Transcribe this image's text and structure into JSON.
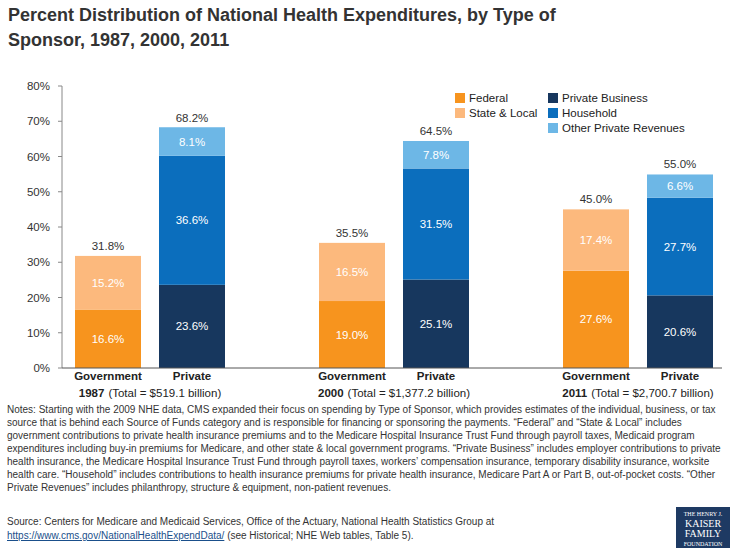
{
  "chart_data": {
    "type": "bar",
    "title": "Percent Distribution of National Health Expenditures, by Type of Sponsor, 1987, 2000, 2011",
    "categories": [
      "Government",
      "Private",
      "Government",
      "Private",
      "Government",
      "Private"
    ],
    "groups": [
      {
        "name": "1987",
        "total_label": "(Total = $519.1 billion)"
      },
      {
        "name": "2000",
        "total_label": "(Total = $1,377.2 billion)"
      },
      {
        "name": "2011",
        "total_label": "(Total = $2,700.7 billion)"
      }
    ],
    "series": [
      {
        "name": "Federal",
        "color": "#f7941e",
        "values": [
          16.6,
          null,
          19.0,
          null,
          27.6,
          null
        ],
        "value_labels": [
          "16.6%",
          null,
          "19.0%",
          null,
          "27.6%",
          null
        ]
      },
      {
        "name": "State & Local",
        "color": "#fcb97d",
        "values": [
          15.2,
          null,
          16.5,
          null,
          17.4,
          null
        ],
        "value_labels": [
          "15.2%",
          null,
          "16.5%",
          null,
          "17.4%",
          null
        ]
      },
      {
        "name": "Private Business",
        "color": "#17375e",
        "values": [
          null,
          23.6,
          null,
          25.1,
          null,
          20.6
        ],
        "value_labels": [
          null,
          "23.6%",
          null,
          "25.1%",
          null,
          "20.6%"
        ]
      },
      {
        "name": "Household",
        "color": "#0b6ebd",
        "values": [
          null,
          36.6,
          null,
          31.5,
          null,
          27.7
        ],
        "value_labels": [
          null,
          "36.6%",
          null,
          "31.5%",
          null,
          "27.7%"
        ]
      },
      {
        "name": "Other Private Revenues",
        "color": "#6db7e6",
        "values": [
          null,
          8.1,
          null,
          7.8,
          null,
          6.6
        ],
        "value_labels": [
          null,
          "8.1%",
          null,
          "7.8%",
          null,
          "6.6%"
        ]
      }
    ],
    "totals": [
      31.8,
      68.2,
      35.5,
      64.5,
      45.0,
      55.0
    ],
    "total_labels": [
      "31.8%",
      "68.2%",
      "35.5%",
      "64.5%",
      "45.0%",
      "55.0%"
    ],
    "ylim": [
      0,
      80
    ],
    "yticks": [
      {
        "value": 0,
        "label": "0%"
      },
      {
        "value": 10,
        "label": "10%"
      },
      {
        "value": 20,
        "label": "20%"
      },
      {
        "value": 30,
        "label": "30%"
      },
      {
        "value": 40,
        "label": "40%"
      },
      {
        "value": 50,
        "label": "50%"
      },
      {
        "value": 60,
        "label": "60%"
      },
      {
        "value": 70,
        "label": "70%"
      },
      {
        "value": 80,
        "label": "80%"
      }
    ],
    "stacked": true,
    "data_labels": true,
    "grid": false,
    "legend": "top-right",
    "notes": "Notes:  Starting with the 2009 NHE data, CMS expanded their focus on spending by Type of Sponsor, which provides estimates of the individual, business, or tax source that is behind each Source of Funds category and is responsible for financing or sponsoring the payments. “Federal” and “State & Local” includes government contributions to private health insurance premiums and to the Medicare Hospital Insurance Trust Fund through payroll taxes, Medicaid program expenditures including buy-in premiums for Medicare, and other state & local government programs. “Private Business” includes employer contributions to private health insurance, the Medicare Hospital Insurance Trust Fund through payroll taxes, workers’ compensation insurance, temporary disability insurance, worksite health care. “Household” includes contributions to health insurance premiums for private health insurance, Medicare Part A or Part B, out-of-pocket costs. “Other Private Revenues” includes philanthropy, structure & equipment, non-patient revenues.",
    "source_prefix": "Source: Centers for Medicare and Medicaid Services, Office of the Actuary, National Health Statistics Group at",
    "source_link": "https://www.cms.gov/NationalHealthExpendData/",
    "source_suffix": "(see Historical; NHE Web tables, Table 5).",
    "logo": [
      "THE HENRY J.",
      "KAISER",
      "FAMILY",
      "FOUNDATION"
    ]
  }
}
